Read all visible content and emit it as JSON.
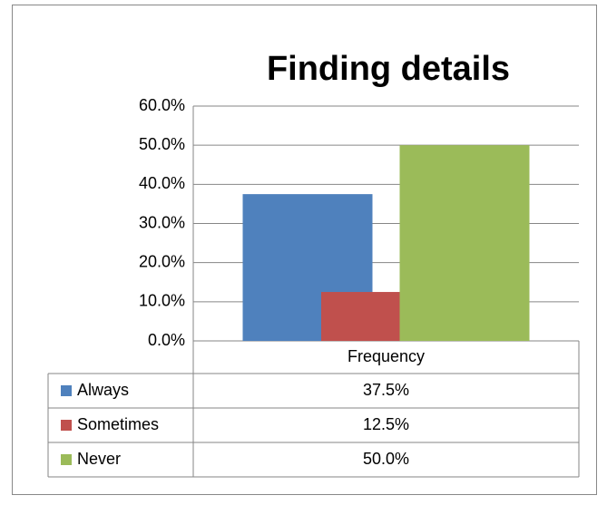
{
  "chart_data": {
    "type": "bar",
    "title": "Finding details",
    "categories": [
      "Frequency"
    ],
    "series": [
      {
        "name": "Always",
        "color": "#4f81bd",
        "values": [
          37.5
        ],
        "value_labels": [
          "37.5%"
        ]
      },
      {
        "name": "Sometimes",
        "color": "#c0504d",
        "values": [
          12.5
        ],
        "value_labels": [
          "12.5%"
        ]
      },
      {
        "name": "Never",
        "color": "#9bbb59",
        "values": [
          50.0
        ],
        "value_labels": [
          "50.0%"
        ]
      }
    ],
    "ylim": [
      0,
      60
    ],
    "yticks": [
      {
        "value": 0,
        "label": "0.0%"
      },
      {
        "value": 10,
        "label": "10.0%"
      },
      {
        "value": 20,
        "label": "20.0%"
      },
      {
        "value": 30,
        "label": "30.0%"
      },
      {
        "value": 40,
        "label": "40.0%"
      },
      {
        "value": 50,
        "label": "50.0%"
      },
      {
        "value": 60,
        "label": "60.0%"
      }
    ],
    "grid": true
  }
}
